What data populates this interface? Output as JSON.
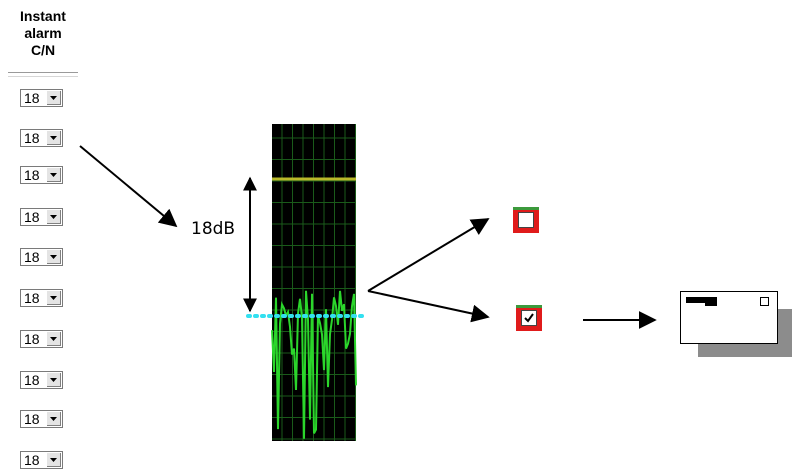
{
  "header": {
    "line1": "Instant",
    "line2": "alarm",
    "line3": "C/N"
  },
  "selects": [
    {
      "value": "18"
    },
    {
      "value": "18"
    },
    {
      "value": "18"
    },
    {
      "value": "18"
    },
    {
      "value": "18"
    },
    {
      "value": "18"
    },
    {
      "value": "18"
    },
    {
      "value": "18"
    },
    {
      "value": "18"
    }
  ],
  "spectrum": {
    "margin_label": "18dB",
    "background_color": "#000000",
    "grid_color": "#1a5a1a",
    "trace_color": "#2bd62b",
    "alarm_line_color": "#b9b92a",
    "noise_line_color": "#33e0f0"
  },
  "checkboxes": {
    "unchecked": {
      "checked": false
    },
    "checked": {
      "checked": true
    }
  },
  "colors": {
    "checkbox_border": "#e01b1b",
    "arrow": "#000000"
  }
}
